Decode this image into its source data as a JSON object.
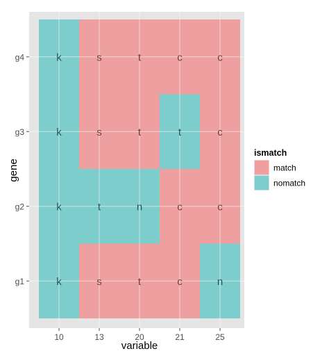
{
  "chart_data": {
    "type": "heatmap",
    "title": "",
    "xlabel": "variable",
    "ylabel": "gene",
    "x_categories": [
      "10",
      "13",
      "20",
      "21",
      "25"
    ],
    "y_categories": [
      "g1",
      "g2",
      "g3",
      "g4"
    ],
    "legend": {
      "title": "ismatch",
      "position": "right",
      "items": [
        {
          "label": "match",
          "color": "#EDA09F"
        },
        {
          "label": "nomatch",
          "color": "#7ECDCD"
        }
      ]
    },
    "cells": [
      {
        "gene": "g1",
        "variable": "10",
        "letter": "k",
        "ismatch": "nomatch"
      },
      {
        "gene": "g1",
        "variable": "13",
        "letter": "s",
        "ismatch": "match"
      },
      {
        "gene": "g1",
        "variable": "20",
        "letter": "t",
        "ismatch": "match"
      },
      {
        "gene": "g1",
        "variable": "21",
        "letter": "c",
        "ismatch": "match"
      },
      {
        "gene": "g1",
        "variable": "25",
        "letter": "n",
        "ismatch": "nomatch"
      },
      {
        "gene": "g2",
        "variable": "10",
        "letter": "k",
        "ismatch": "nomatch"
      },
      {
        "gene": "g2",
        "variable": "13",
        "letter": "t",
        "ismatch": "nomatch"
      },
      {
        "gene": "g2",
        "variable": "20",
        "letter": "n",
        "ismatch": "nomatch"
      },
      {
        "gene": "g2",
        "variable": "21",
        "letter": "c",
        "ismatch": "match"
      },
      {
        "gene": "g2",
        "variable": "25",
        "letter": "c",
        "ismatch": "match"
      },
      {
        "gene": "g3",
        "variable": "10",
        "letter": "k",
        "ismatch": "nomatch"
      },
      {
        "gene": "g3",
        "variable": "13",
        "letter": "s",
        "ismatch": "match"
      },
      {
        "gene": "g3",
        "variable": "20",
        "letter": "t",
        "ismatch": "match"
      },
      {
        "gene": "g3",
        "variable": "21",
        "letter": "t",
        "ismatch": "nomatch"
      },
      {
        "gene": "g3",
        "variable": "25",
        "letter": "c",
        "ismatch": "match"
      },
      {
        "gene": "g4",
        "variable": "10",
        "letter": "k",
        "ismatch": "nomatch"
      },
      {
        "gene": "g4",
        "variable": "13",
        "letter": "s",
        "ismatch": "match"
      },
      {
        "gene": "g4",
        "variable": "20",
        "letter": "t",
        "ismatch": "match"
      },
      {
        "gene": "g4",
        "variable": "21",
        "letter": "c",
        "ismatch": "match"
      },
      {
        "gene": "g4",
        "variable": "25",
        "letter": "c",
        "ismatch": "match"
      }
    ],
    "grid": true,
    "colors": {
      "panel_background": "#E5E5E5",
      "grid_line": "#FFFFFF",
      "match": "#EDA09F",
      "nomatch": "#7ECDCD",
      "match_text": "#7A3B3B",
      "nomatch_text": "#1F5A5E",
      "axis_text": "#4D4D4D"
    }
  }
}
